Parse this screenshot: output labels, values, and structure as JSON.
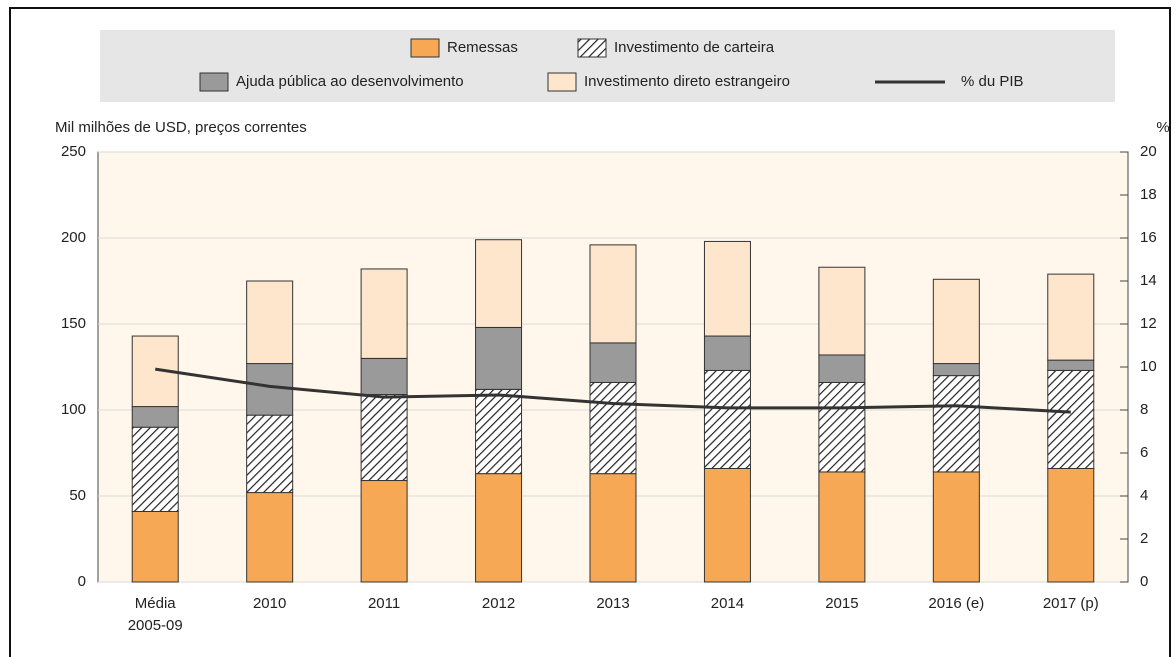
{
  "chart_data": {
    "type": "bar",
    "stacked": true,
    "y_label": "Mil milhões de USD, preços correntes",
    "y2_label": "%",
    "categories": [
      "Média\n2005-09",
      "2010",
      "2011",
      "2012",
      "2013",
      "2014",
      "2015",
      "2016 (e)",
      "2017 (p)"
    ],
    "series": [
      {
        "name": "Remessas",
        "type": "bar",
        "color": "#f7a854",
        "values": [
          41,
          52,
          59,
          63,
          63,
          66,
          64,
          64,
          66
        ]
      },
      {
        "name": "Investimento de carteira",
        "type": "bar",
        "color": "hatch",
        "values": [
          49,
          45,
          50,
          49,
          53,
          57,
          52,
          56,
          57
        ]
      },
      {
        "name": "Ajuda pública ao desenvolvimento",
        "type": "bar",
        "color": "#9a9a9a",
        "values": [
          12,
          30,
          21,
          36,
          23,
          20,
          16,
          7,
          6
        ]
      },
      {
        "name": "Investimento direto estrangeiro",
        "type": "bar",
        "color": "#fde6cc",
        "values": [
          41,
          48,
          52,
          51,
          57,
          55,
          51,
          49,
          50
        ]
      },
      {
        "name": "% du PIB",
        "type": "line",
        "axis": "y2",
        "color": "#333333",
        "values": [
          9.9,
          9.1,
          8.6,
          8.7,
          8.3,
          8.1,
          8.1,
          8.2,
          7.9
        ]
      }
    ],
    "ylim": [
      0,
      250
    ],
    "yticks": [
      0,
      50,
      100,
      150,
      200,
      250
    ],
    "y2lim": [
      0,
      20
    ],
    "y2ticks": [
      0,
      2,
      4,
      6,
      8,
      10,
      12,
      14,
      16,
      18,
      20
    ],
    "grid": true
  }
}
